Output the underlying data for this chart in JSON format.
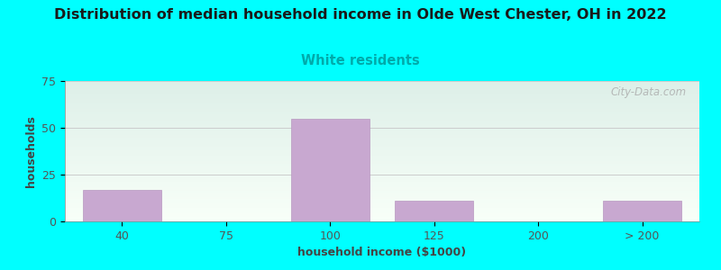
{
  "title": "Distribution of median household income in Olde West Chester, OH in 2022",
  "subtitle": "White residents",
  "xlabel": "household income ($1000)",
  "ylabel": "households",
  "title_fontsize": 11.5,
  "subtitle_fontsize": 10.5,
  "subtitle_color": "#00AAAA",
  "xlabel_fontsize": 9,
  "ylabel_fontsize": 9,
  "tick_fontsize": 9,
  "background_color": "#00FFFF",
  "bar_color": "#C8A8D0",
  "bar_edge_color": "#B898C0",
  "tick_label_color": "#555555",
  "axis_label_color": "#444444",
  "grid_color": "#cccccc",
  "ylim": [
    0,
    75
  ],
  "yticks": [
    0,
    25,
    50,
    75
  ],
  "categories": [
    "40",
    "75",
    "100",
    "125",
    "200",
    "> 200"
  ],
  "bar_heights": [
    17,
    0,
    55,
    11,
    0,
    11
  ],
  "bar_positions": [
    0,
    1,
    2,
    3,
    4,
    5
  ],
  "bar_width": 0.75,
  "watermark": "City-Data.com",
  "plot_bg_top": "#e8f5e2",
  "plot_bg_bottom": "#f8fff8",
  "plot_bg_right": "#e0f0f8"
}
